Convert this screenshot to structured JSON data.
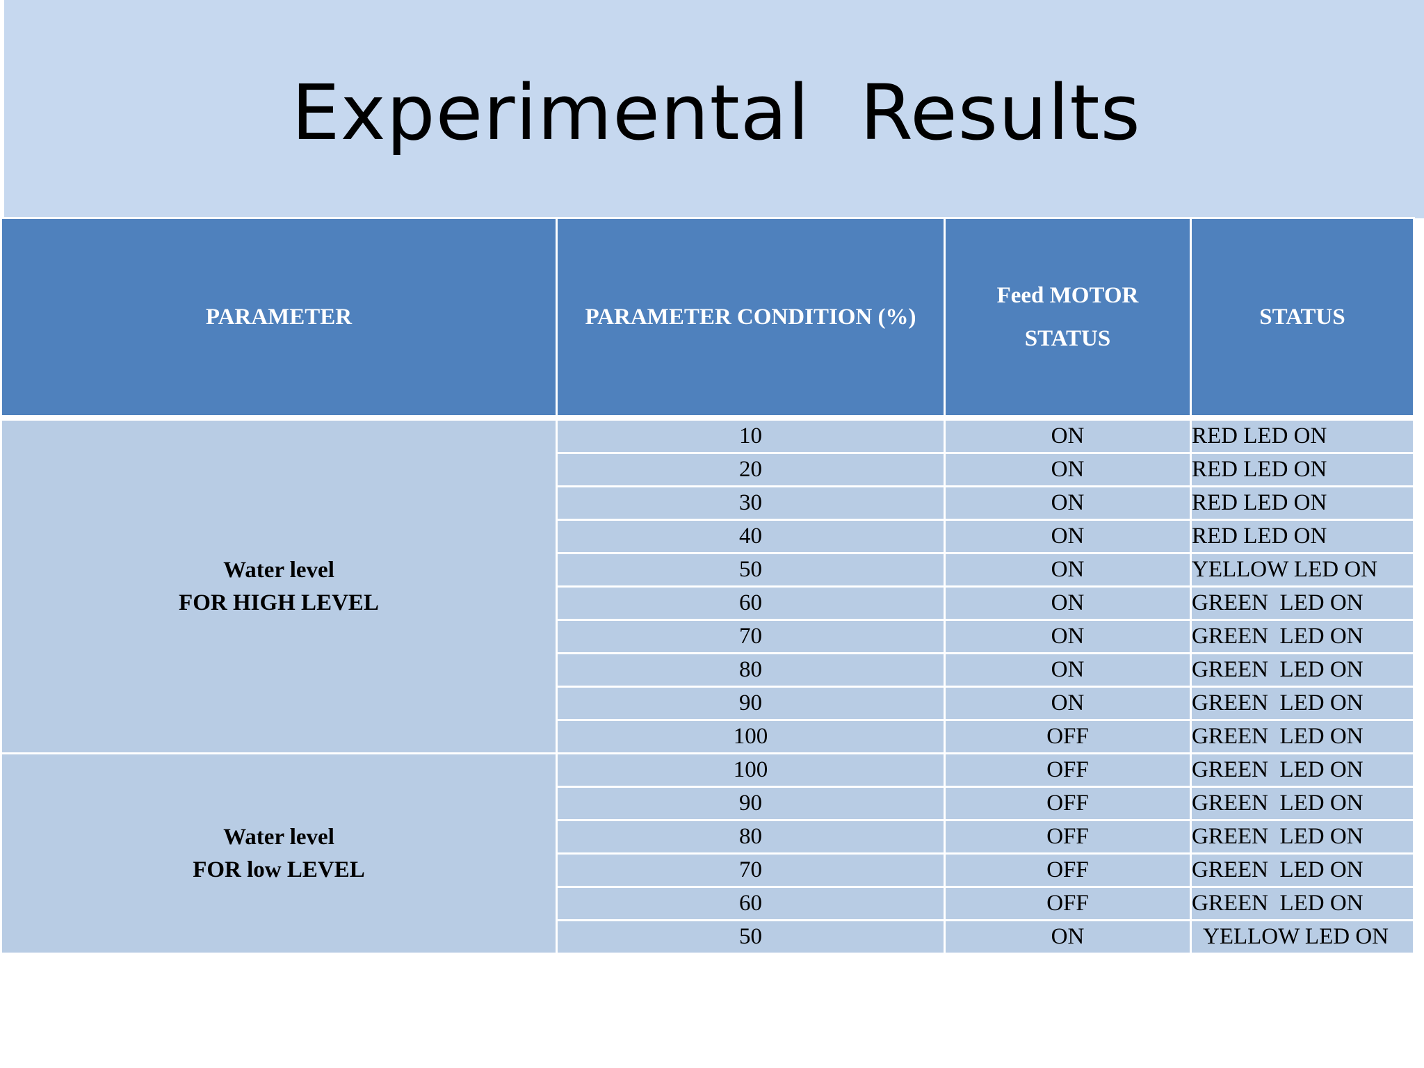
{
  "title": "Experimental  Results",
  "table": {
    "headers": {
      "parameter": "PARAMETER",
      "condition": "PARAMETER CONDITION (%)",
      "motor_line1": "Feed MOTOR",
      "motor_line2": "STATUS",
      "status": "STATUS"
    },
    "groups": [
      {
        "label_line1": "Water level",
        "label_line2": "FOR HIGH LEVEL",
        "rows": [
          {
            "condition": "10",
            "motor": "ON",
            "status": "RED LED ON"
          },
          {
            "condition": "20",
            "motor": "ON",
            "status": "RED LED ON"
          },
          {
            "condition": "30",
            "motor": "ON",
            "status": "RED LED ON"
          },
          {
            "condition": "40",
            "motor": "ON",
            "status": "RED LED ON"
          },
          {
            "condition": "50",
            "motor": "ON",
            "status": "YELLOW LED ON"
          },
          {
            "condition": "60",
            "motor": "ON",
            "status": "GREEN  LED ON"
          },
          {
            "condition": "70",
            "motor": "ON",
            "status": "GREEN  LED ON"
          },
          {
            "condition": "80",
            "motor": "ON",
            "status": "GREEN  LED ON"
          },
          {
            "condition": "90",
            "motor": "ON",
            "status": "GREEN  LED ON"
          },
          {
            "condition": "100",
            "motor": "OFF",
            "status": "GREEN  LED ON"
          }
        ]
      },
      {
        "label_line1": "Water level",
        "label_line2": "FOR low LEVEL",
        "rows": [
          {
            "condition": "100",
            "motor": "OFF",
            "status": "GREEN  LED ON"
          },
          {
            "condition": "90",
            "motor": "OFF",
            "status": "GREEN  LED ON"
          },
          {
            "condition": "80",
            "motor": "OFF",
            "status": "GREEN  LED ON"
          },
          {
            "condition": "70",
            "motor": "OFF",
            "status": "GREEN  LED ON"
          },
          {
            "condition": "60",
            "motor": "OFF",
            "status": "GREEN  LED ON"
          },
          {
            "condition": "50",
            "motor": "ON",
            "status": "YELLOW LED ON"
          }
        ]
      }
    ]
  }
}
